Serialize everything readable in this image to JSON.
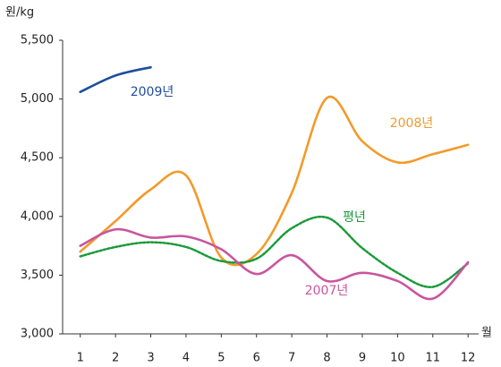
{
  "chart_data": {
    "type": "line",
    "y_label": "원/kg",
    "x_label": "월",
    "x": [
      1,
      2,
      3,
      4,
      5,
      6,
      7,
      8,
      9,
      10,
      11,
      12
    ],
    "xlim": [
      0.5,
      12.3
    ],
    "xticks": [
      1,
      2,
      3,
      4,
      5,
      6,
      7,
      8,
      9,
      10,
      11,
      12
    ],
    "ylim": [
      3000,
      5500
    ],
    "yticks": [
      {
        "value": 3000,
        "label": "3,000"
      },
      {
        "value": 3500,
        "label": "3,500"
      },
      {
        "value": 4000,
        "label": "4,000"
      },
      {
        "value": 4500,
        "label": "4,500"
      },
      {
        "value": 5000,
        "label": "5,000"
      },
      {
        "value": 5500,
        "label": "5,500"
      }
    ],
    "grid": false,
    "legend": "inline",
    "series": [
      {
        "name": "2009년",
        "color": "#1f4e9c",
        "dashed": false,
        "values": [
          5060,
          5200,
          5270,
          null,
          null,
          null,
          null,
          null,
          null,
          null,
          null,
          null
        ]
      },
      {
        "name": "2008년",
        "color": "#f39a2b",
        "dashed": false,
        "values": [
          3700,
          3960,
          4230,
          4350,
          3650,
          3680,
          4200,
          5010,
          4640,
          4460,
          4530,
          4610
        ]
      },
      {
        "name": "평년",
        "color": "#1a9a3a",
        "dashed": true,
        "values": [
          3660,
          3740,
          3780,
          3740,
          3620,
          3640,
          3900,
          3990,
          3730,
          3520,
          3400,
          3600
        ]
      },
      {
        "name": "2007년",
        "color": "#c9559f",
        "dashed": false,
        "values": [
          3750,
          3890,
          3820,
          3830,
          3720,
          3510,
          3670,
          3450,
          3520,
          3450,
          3300,
          3610
        ]
      }
    ]
  }
}
